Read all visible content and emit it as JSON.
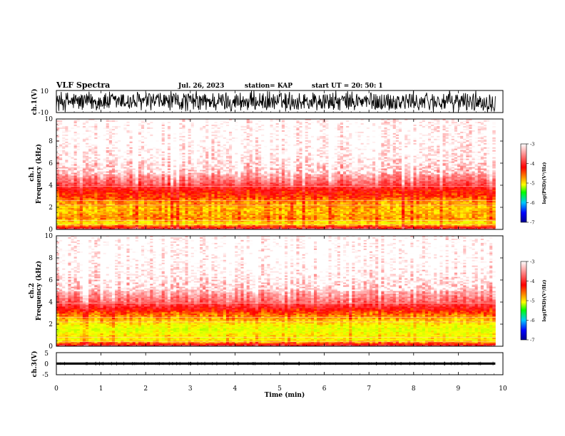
{
  "header": {
    "title": "VLF Spectra",
    "date": "Jul. 26, 2023",
    "station": "station= KAP",
    "start_ut": "start UT =  20: 50: 1"
  },
  "colorbar": {
    "label": "log(PSD)(V²/Hz)",
    "ticks": [
      "-3",
      "-4",
      "-5",
      "-6",
      "-7"
    ],
    "colormap": [
      "#ffffff",
      "#ff9a9a",
      "#ff0000",
      "#ffff00",
      "#00ff00",
      "#00c8ff",
      "#0000ff",
      "#000090"
    ]
  },
  "colors": {
    "waveform": "#000000",
    "axis": "#000000"
  },
  "chart_data": [
    {
      "type": "line",
      "name": "ch1-waveform",
      "ylabel": "ch.1(V)",
      "ylim": [
        -10,
        10
      ],
      "yticks": [
        "10",
        "-10"
      ],
      "xlim": [
        0,
        10
      ],
      "description_values": {
        "amplitude_range_V": [
          -10,
          10
        ]
      }
    },
    {
      "type": "heatmap",
      "name": "ch1-spectrogram",
      "ylabel": "ch.1 Frequency (kHz)",
      "ylabel_lines": [
        "ch.1",
        "Frequency (kHz)"
      ],
      "ylim": [
        0,
        10
      ],
      "yticks": [
        "0",
        "2",
        "4",
        "6",
        "8",
        "10"
      ],
      "xlim": [
        0,
        9.83
      ],
      "color_scale": [
        -7,
        -3
      ],
      "frequency_profile_kHz": [
        0,
        0.5,
        1,
        1.5,
        2,
        2.5,
        3,
        3.5,
        4,
        4.5,
        5,
        6,
        7,
        8,
        9,
        10
      ],
      "log_psd_profile": [
        -3.6,
        -4.6,
        -4.3,
        -4.4,
        -4.4,
        -4.3,
        -4.1,
        -4.0,
        -3.7,
        -3.5,
        -3.3,
        -3.15,
        -3.05,
        -3.0,
        -3.0,
        -3.0
      ]
    },
    {
      "type": "heatmap",
      "name": "ch2-spectrogram",
      "ylabel": "ch.2 Frequency (kHz)",
      "ylabel_lines": [
        "ch.2",
        "Frequency (kHz)"
      ],
      "ylim": [
        0,
        10
      ],
      "yticks": [
        "0",
        "2",
        "4",
        "6",
        "8",
        "10"
      ],
      "xlim": [
        0,
        9.83
      ],
      "color_scale": [
        -7,
        -3
      ],
      "frequency_profile_kHz": [
        0,
        0.5,
        1,
        1.5,
        2,
        2.5,
        3,
        3.5,
        4,
        4.5,
        5,
        6,
        7,
        8,
        9,
        10
      ],
      "log_psd_profile": [
        -3.7,
        -4.6,
        -4.6,
        -4.8,
        -4.6,
        -4.4,
        -4.2,
        -3.9,
        -3.6,
        -3.45,
        -3.3,
        -3.15,
        -3.05,
        -3.0,
        -3.0,
        -3.0
      ]
    },
    {
      "type": "line",
      "name": "ch3-waveform",
      "ylabel": "ch.3(V)",
      "ylim": [
        -5,
        5
      ],
      "yticks": [
        "5",
        "0",
        "-5"
      ],
      "xlim": [
        0,
        10
      ],
      "description_values": {
        "amplitude_range_V": [
          -0.5,
          0.5
        ]
      }
    }
  ],
  "xaxis": {
    "label": "Time (min)",
    "ticks": [
      "0",
      "1",
      "2",
      "3",
      "4",
      "5",
      "6",
      "7",
      "8",
      "9",
      "10"
    ],
    "range": [
      0,
      10
    ]
  }
}
